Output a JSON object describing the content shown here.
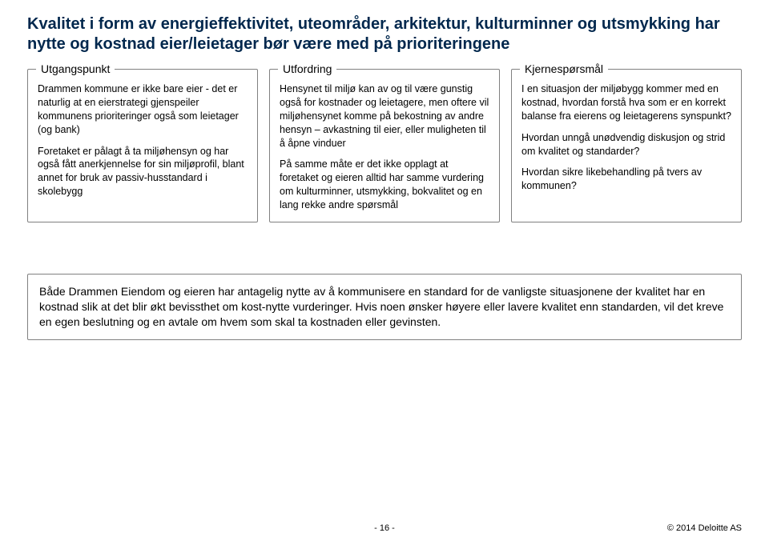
{
  "title": "Kvalitet i form av energieffektivitet, uteområder, arkitektur, kulturminner og utsmykking har nytte og kostnad eier/leietager bør være med på prioriteringene",
  "columns": [
    {
      "legend": "Utgangspunkt",
      "paras": [
        "Drammen kommune er ikke bare eier - det er naturlig at en eierstrategi gjenspeiler kommunens prioriteringer også som leietager (og bank)",
        "Foretaket er pålagt å ta miljøhensyn og har også fått anerkjennelse for sin miljøprofil, blant annet for bruk av passiv-husstandard i skolebygg"
      ]
    },
    {
      "legend": "Utfordring",
      "paras": [
        "Hensynet til miljø kan av og til være gunstig også for kostnader og leietagere, men oftere vil miljøhensynet komme på bekostning av andre hensyn – avkastning til eier, eller muligheten til å åpne vinduer",
        "På samme måte er det ikke opplagt at foretaket og eieren alltid har samme vurdering om kulturminner, utsmykking, bokvalitet og en lang rekke andre spørsmål"
      ]
    },
    {
      "legend": "Kjernespørsmål",
      "paras": [
        "I en situasjon der miljøbygg kommer med en kostnad, hvordan forstå hva som er en korrekt balanse fra eierens og leietagerens synspunkt?",
        "Hvordan unngå unødvendig diskusjon og strid om kvalitet og standarder?",
        "Hvordan sikre likebehandling på tvers av kommunen?"
      ]
    }
  ],
  "bottom": "Både Drammen Eiendom og eieren har antagelig nytte av å kommunisere en standard for de vanligste situasjonene der kvalitet har en kostnad slik at det blir økt bevissthet om kost-nytte vurderinger. Hvis noen ønsker høyere eller lavere kvalitet enn standarden, vil det kreve en egen beslutning og en avtale om hvem som skal ta kostnaden eller gevinsten.",
  "footer": {
    "page": "- 16 -",
    "copyright": "© 2014 Deloitte AS"
  },
  "colors": {
    "title": "#00274d",
    "border": "#808080",
    "text": "#000000",
    "bg": "#ffffff"
  }
}
